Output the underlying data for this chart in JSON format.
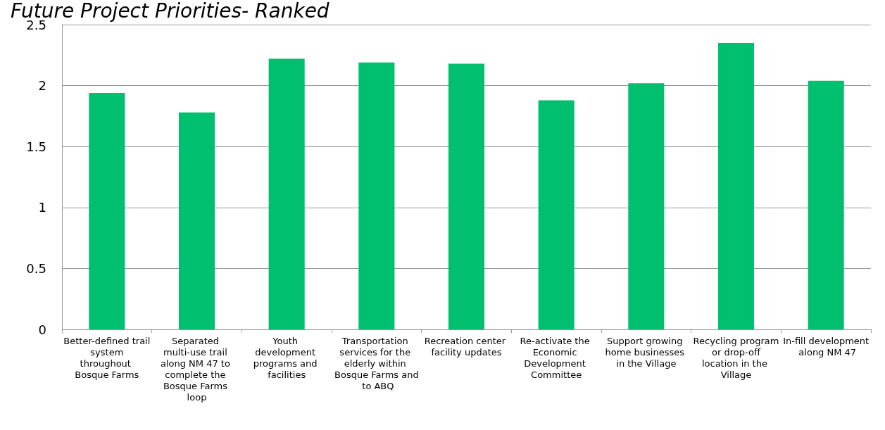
{
  "chart_data": {
    "type": "bar",
    "title": "Future Project Priorities- Ranked",
    "categories": [
      "Better-defined trail system throughout Bosque Farms",
      "Separated multi-use trail along NM 47 to complete the Bosque Farms loop",
      "Youth development programs and facilities",
      "Transportation services for the elderly within Bosque Farms and to ABQ",
      "Recreation center facility updates",
      "Re-activate the Economic Development Committee",
      "Support growing home businesses in the Village",
      "Recycling program or drop-off location in the Village",
      "In-fill development along NM 47"
    ],
    "values": [
      1.94,
      1.78,
      2.22,
      2.19,
      2.18,
      1.88,
      2.02,
      2.35,
      2.04
    ],
    "color": "#00bf6f",
    "ylim": [
      0,
      2.5
    ],
    "yticks": [
      0,
      0.5,
      1,
      1.5,
      2,
      2.5
    ],
    "grid": "y"
  }
}
